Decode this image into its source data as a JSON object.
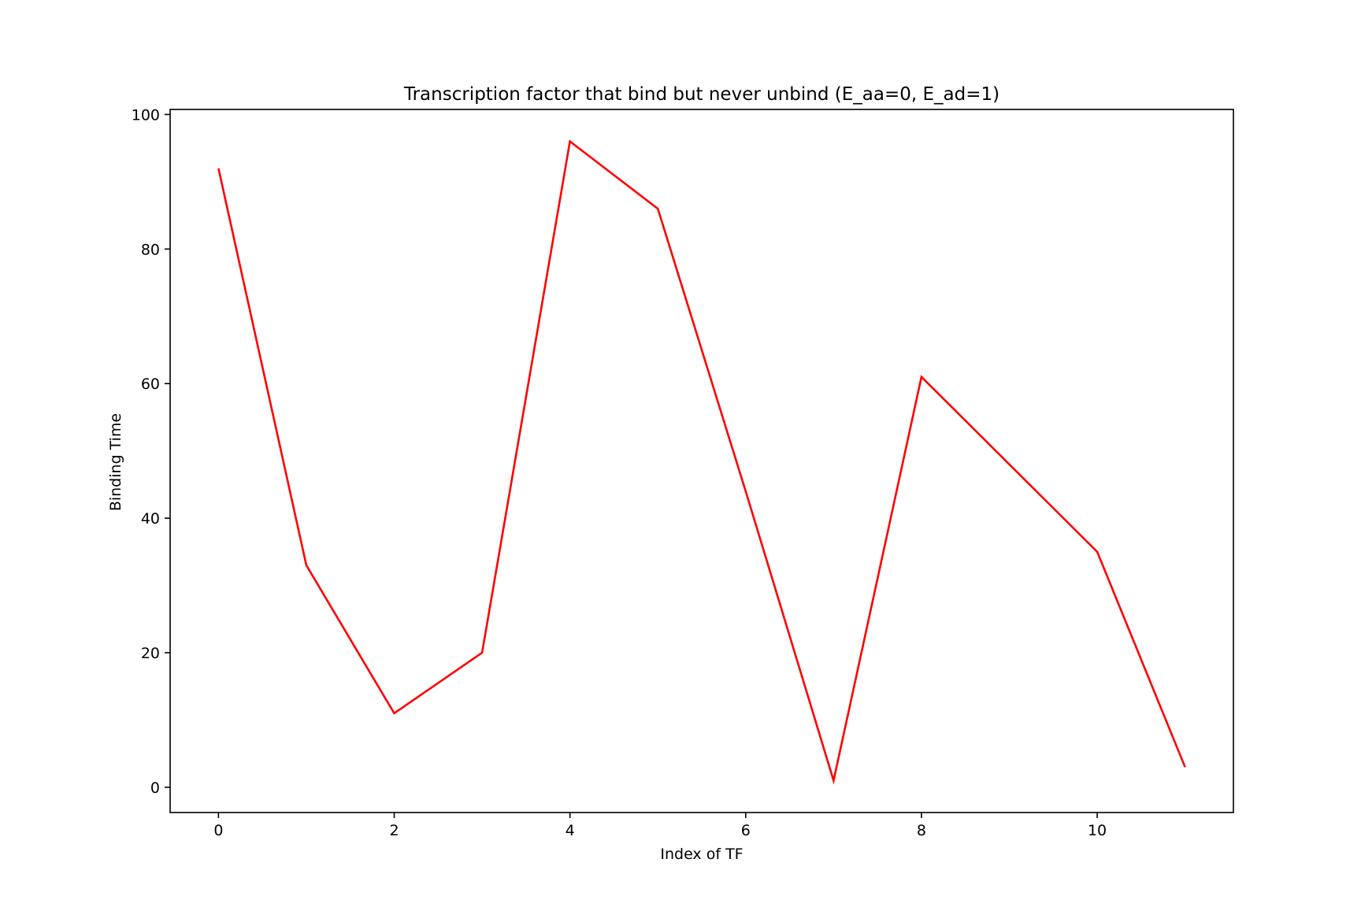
{
  "chart_data": {
    "type": "line",
    "title": "Transcription factor that bind but never unbind (E_aa=0, E_ad=1)",
    "xlabel": "Index of TF",
    "ylabel": "Binding Time",
    "xlim": [
      -0.55,
      11.55
    ],
    "ylim": [
      -3.75,
      100.75
    ],
    "x_ticks": [
      0,
      2,
      4,
      6,
      8,
      10
    ],
    "y_ticks": [
      0,
      20,
      40,
      60,
      80,
      100
    ],
    "grid": false,
    "legend": "none",
    "series": [
      {
        "color": "#ff0000",
        "x": [
          0,
          1,
          2,
          3,
          4,
          5,
          6,
          7,
          8,
          9,
          10,
          11
        ],
        "values": [
          92,
          33,
          11,
          20,
          96,
          86,
          44,
          1,
          61,
          48,
          35,
          3
        ]
      }
    ]
  }
}
